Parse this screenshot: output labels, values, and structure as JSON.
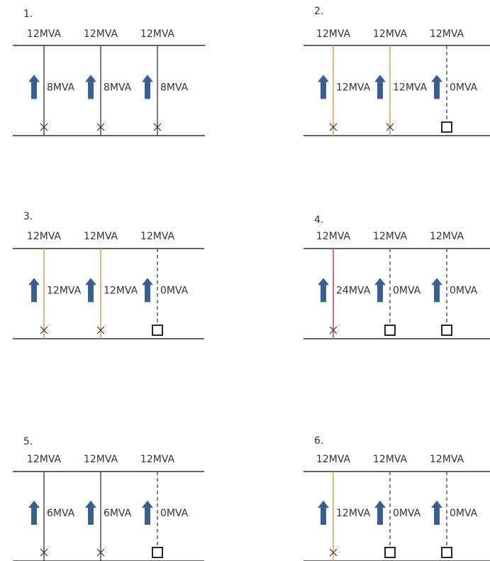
{
  "colors": {
    "bus": "#333333",
    "line_normal": "#333333",
    "line_loaded": "#f0a050",
    "line_overloaded": "#e8556a",
    "arrow": "#3a5f8f",
    "text": "#333333"
  },
  "scenarios": [
    {
      "number": "1.",
      "feeders": [
        {
          "rating": "12MVA",
          "flow": "8MVA",
          "status": "normal",
          "breaker": "closed"
        },
        {
          "rating": "12MVA",
          "flow": "8MVA",
          "status": "normal",
          "breaker": "closed"
        },
        {
          "rating": "12MVA",
          "flow": "8MVA",
          "status": "normal",
          "breaker": "closed"
        }
      ]
    },
    {
      "number": "2.",
      "feeders": [
        {
          "rating": "12MVA",
          "flow": "12MVA",
          "status": "loaded",
          "breaker": "closed"
        },
        {
          "rating": "12MVA",
          "flow": "12MVA",
          "status": "loaded",
          "breaker": "closed"
        },
        {
          "rating": "12MVA",
          "flow": "0MVA",
          "status": "off",
          "breaker": "open"
        }
      ]
    },
    {
      "number": "3.",
      "feeders": [
        {
          "rating": "12MVA",
          "flow": "12MVA",
          "status": "loaded",
          "breaker": "closed"
        },
        {
          "rating": "12MVA",
          "flow": "12MVA",
          "status": "loaded",
          "breaker": "closed"
        },
        {
          "rating": "12MVA",
          "flow": "0MVA",
          "status": "off",
          "breaker": "open"
        }
      ]
    },
    {
      "number": "4.",
      "feeders": [
        {
          "rating": "12MVA",
          "flow": "24MVA",
          "status": "overloaded",
          "breaker": "closed"
        },
        {
          "rating": "12MVA",
          "flow": "0MVA",
          "status": "off",
          "breaker": "open"
        },
        {
          "rating": "12MVA",
          "flow": "0MVA",
          "status": "off",
          "breaker": "open"
        }
      ]
    },
    {
      "number": "5.",
      "feeders": [
        {
          "rating": "12MVA",
          "flow": "6MVA",
          "status": "normal",
          "breaker": "closed"
        },
        {
          "rating": "12MVA",
          "flow": "6MVA",
          "status": "normal",
          "breaker": "closed"
        },
        {
          "rating": "12MVA",
          "flow": "0MVA",
          "status": "off",
          "breaker": "open"
        }
      ]
    },
    {
      "number": "6.",
      "feeders": [
        {
          "rating": "12MVA",
          "flow": "12MVA",
          "status": "loaded",
          "breaker": "closed"
        },
        {
          "rating": "12MVA",
          "flow": "0MVA",
          "status": "off",
          "breaker": "open"
        },
        {
          "rating": "12MVA",
          "flow": "0MVA",
          "status": "off",
          "breaker": "open"
        }
      ]
    }
  ]
}
